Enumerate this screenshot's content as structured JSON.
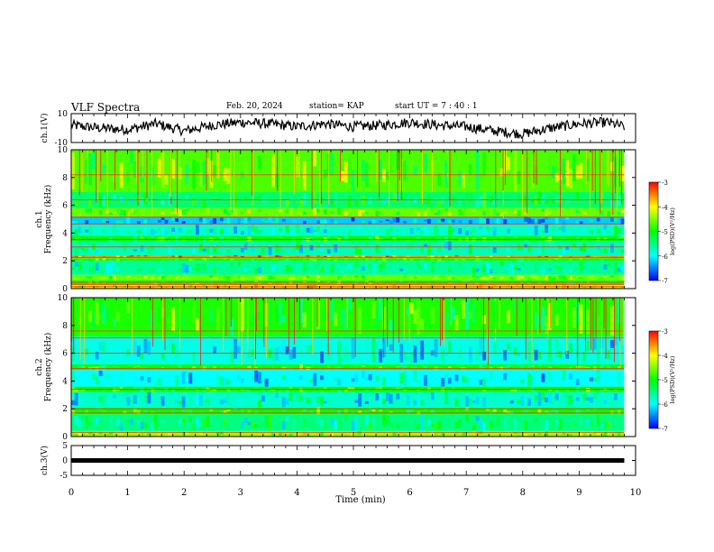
{
  "header": {
    "title": "VLF Spectra",
    "date": "Feb. 20, 2024",
    "station": "station= KAP",
    "start": "start  UT =   7 : 40 : 1"
  },
  "chart_data": [
    {
      "type": "line",
      "panel": "ch1-waveform",
      "ylabel": "ch.1(V)",
      "ylim": [
        -10,
        10
      ],
      "yticks": [
        "10",
        "-10"
      ],
      "x_unit": "min",
      "xlim": [
        0,
        10
      ],
      "data_xrange": [
        0,
        9.8
      ],
      "color": "#000000",
      "series": [
        {
          "x": [
            0,
            0.5,
            1,
            1.5,
            2,
            2.5,
            3,
            3.5,
            4,
            4.5,
            5,
            5.5,
            6,
            6.5,
            7,
            7.5,
            8,
            8.5,
            9,
            9.5,
            9.8
          ],
          "values": [
            2,
            0,
            -1,
            3,
            -2,
            2,
            4,
            3,
            1,
            3,
            1,
            2,
            4,
            2,
            1,
            -2,
            -4,
            0,
            3,
            4,
            1
          ]
        }
      ]
    },
    {
      "type": "heatmap",
      "panel": "ch1-spectrogram",
      "ylabel": "ch.1\nFrequency (kHz)",
      "ylim": [
        0,
        10
      ],
      "yticks": [
        "0",
        "2",
        "4",
        "6",
        "8",
        "10"
      ],
      "xlim": [
        0,
        10
      ],
      "data_xrange": [
        0,
        9.8
      ],
      "colorbar": {
        "label": "log(PSD)(V²/Hz)",
        "range": [
          -7,
          -3
        ],
        "ticks": [
          "-3",
          "-4",
          "-5",
          "-6",
          "-7"
        ]
      },
      "bands": [
        {
          "from": 0,
          "to": 0.3,
          "level": -4.2
        },
        {
          "from": 0.3,
          "to": 0.6,
          "level": -5
        },
        {
          "from": 0.6,
          "to": 1.0,
          "level": -4.6
        },
        {
          "from": 1.0,
          "to": 2.0,
          "level": -5.6
        },
        {
          "from": 2.0,
          "to": 2.2,
          "level": -5.0
        },
        {
          "from": 2.2,
          "to": 2.4,
          "level": -3.6
        },
        {
          "from": 2.4,
          "to": 3.4,
          "level": -5.7
        },
        {
          "from": 3.4,
          "to": 3.8,
          "level": -5.0
        },
        {
          "from": 3.8,
          "to": 4.6,
          "level": -5.8
        },
        {
          "from": 4.6,
          "to": 5.2,
          "level": -6.2
        },
        {
          "from": 5.2,
          "to": 5.8,
          "level": -4.6
        },
        {
          "from": 5.8,
          "to": 7.0,
          "level": -5.4
        },
        {
          "from": 7.0,
          "to": 10.0,
          "level": -4.7
        }
      ],
      "lines_khz": [
        0.15,
        0.3,
        0.45,
        2.25,
        3.0,
        3.55,
        4.65,
        5.15,
        6.4,
        8.2
      ]
    },
    {
      "type": "heatmap",
      "panel": "ch2-spectrogram",
      "ylabel": "ch.2\nFrequency (kHz)",
      "ylim": [
        0,
        10
      ],
      "yticks": [
        "0",
        "2",
        "4",
        "6",
        "8",
        "10"
      ],
      "xlim": [
        0,
        10
      ],
      "data_xrange": [
        0,
        9.8
      ],
      "colorbar": {
        "label": "log(PSD)(V²/Hz)",
        "range": [
          -7,
          -3
        ],
        "ticks": [
          "-3",
          "-4",
          "-5",
          "-6",
          "-7"
        ]
      },
      "bands": [
        {
          "from": 0,
          "to": 0.4,
          "level": -4.4
        },
        {
          "from": 0.4,
          "to": 1.6,
          "level": -5.5
        },
        {
          "from": 1.6,
          "to": 2.1,
          "level": -5.0
        },
        {
          "from": 2.1,
          "to": 3.2,
          "level": -5.8
        },
        {
          "from": 3.2,
          "to": 3.6,
          "level": -5.0
        },
        {
          "from": 3.6,
          "to": 4.8,
          "level": -6.0
        },
        {
          "from": 4.8,
          "to": 5.2,
          "level": -5.0
        },
        {
          "from": 5.2,
          "to": 7.2,
          "level": -5.9
        },
        {
          "from": 7.2,
          "to": 10.0,
          "level": -4.9
        }
      ],
      "lines_khz": [
        0.3,
        1.7,
        2.0,
        3.4,
        4.9,
        6.0,
        7.1,
        7.6
      ]
    },
    {
      "type": "line",
      "panel": "ch3-waveform",
      "ylabel": "ch.3(V)",
      "ylim": [
        -5,
        5
      ],
      "yticks": [
        "5",
        "0",
        "-5"
      ],
      "xlim": [
        0,
        10
      ],
      "data_xrange": [
        0,
        9.8
      ],
      "color": "#000000",
      "series": [
        {
          "x": [
            0,
            9.8
          ],
          "values": [
            0,
            0
          ]
        }
      ]
    }
  ],
  "xaxis": {
    "label": "Time (min)",
    "ticks": [
      "0",
      "1",
      "2",
      "3",
      "4",
      "5",
      "6",
      "7",
      "8",
      "9",
      "10"
    ]
  },
  "colors": {
    "colormap": [
      "#0000ff",
      "#00ffff",
      "#00ff00",
      "#ffff00",
      "#ff0000"
    ]
  }
}
